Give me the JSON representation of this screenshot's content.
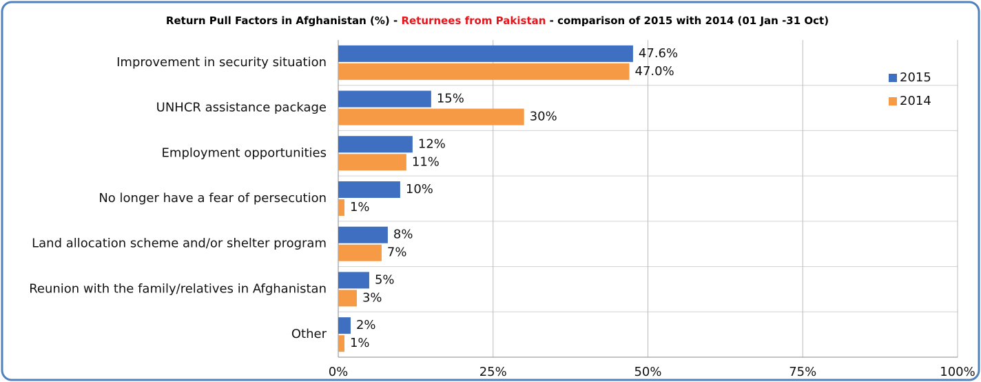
{
  "chart_data": {
    "type": "hbar",
    "title_parts": [
      "Return Pull Factors in Afghanistan (%)  - ",
      "Returnees from Pakistan",
      " - comparison of 2015 with 2014 (01 Jan -31 Oct)"
    ],
    "title_colors": [
      "#000000",
      "#e8141b",
      "#000000"
    ],
    "categories": [
      "Improvement in security situation",
      "UNHCR assistance package",
      "Employment opportunities",
      "No longer have a fear of persecution",
      "Land allocation scheme and/or shelter program",
      "Reunion with the family/relatives in Afghanistan",
      "Other"
    ],
    "series": [
      {
        "name": "2015",
        "color": "#3f6fc0",
        "values": [
          47.6,
          15,
          12,
          10,
          8,
          5,
          2
        ],
        "value_labels": [
          "47.6%",
          "15%",
          "12%",
          "10%",
          "8%",
          "5%",
          "2%"
        ]
      },
      {
        "name": "2014",
        "color": "#f79a45",
        "values": [
          47.0,
          30,
          11,
          1,
          7,
          3,
          1
        ],
        "value_labels": [
          "47.0%",
          "30%",
          "11%",
          "1%",
          "7%",
          "3%",
          "1%"
        ]
      }
    ],
    "xlim": [
      0,
      100
    ],
    "xticks": [
      {
        "value": 0,
        "label": "0%"
      },
      {
        "value": 25,
        "label": "25%"
      },
      {
        "value": 50,
        "label": "50%"
      },
      {
        "value": 75,
        "label": "75%"
      },
      {
        "value": 100,
        "label": "100%"
      }
    ],
    "grid": true,
    "legend": "upper right"
  }
}
